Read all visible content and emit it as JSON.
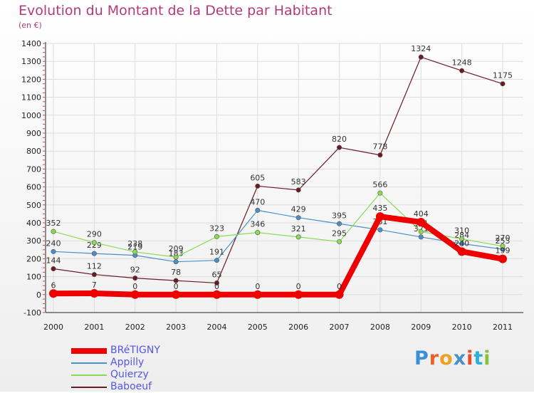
{
  "chart_data": {
    "type": "line",
    "title": "Evolution du Montant de la Dette par Habitant",
    "subtitle": "(en €)",
    "x": [
      "2000",
      "2001",
      "2002",
      "2003",
      "2004",
      "2005",
      "2006",
      "2007",
      "2008",
      "2009",
      "2010",
      "2011"
    ],
    "ylim": [
      -100,
      1400
    ],
    "yticks": [
      -100,
      0,
      100,
      200,
      300,
      400,
      500,
      600,
      700,
      800,
      900,
      1000,
      1100,
      1200,
      1300,
      1400
    ],
    "grid": true,
    "legend_position": "bottom-left",
    "series": [
      {
        "name": "Baboeuf",
        "color": "#6b1a24",
        "width": 1.2,
        "values": [
          144,
          112,
          92,
          78,
          65,
          605,
          583,
          820,
          778,
          1324,
          1248,
          1175
        ],
        "labels": [
          "144",
          "112",
          "92",
          "78",
          "65",
          "605",
          "583",
          "820",
          "778",
          "1324",
          "1248",
          "1175"
        ]
      },
      {
        "name": "Appilly",
        "color": "#4a90c8",
        "width": 1.2,
        "values": [
          240,
          229,
          219,
          183,
          191,
          470,
          429,
          395,
          361,
          321,
          284,
          253
        ],
        "labels": [
          "240",
          "229",
          "219",
          "183",
          "191",
          "470",
          "429",
          "395",
          "361",
          "321",
          "284",
          "253"
        ]
      },
      {
        "name": "Quierzy",
        "color": "#88dd55",
        "width": 1.2,
        "values": [
          352,
          290,
          238,
          209,
          323,
          346,
          321,
          295,
          566,
          351,
          310,
          270
        ],
        "labels": [
          "352",
          "290",
          "238",
          "209",
          "323",
          "346",
          "321",
          "295",
          "566",
          "351",
          "310",
          "270"
        ]
      },
      {
        "name": "BRéTIGNY",
        "color": "#ee0000",
        "width": 8,
        "values": [
          6,
          7,
          0,
          0,
          0,
          0,
          0,
          0,
          435,
          404,
          240,
          199
        ],
        "labels": [
          "6",
          "7",
          "0",
          "0",
          "0",
          "0",
          "0",
          "0",
          "435",
          "404",
          "240",
          "199"
        ]
      }
    ]
  },
  "legend": {
    "items": [
      {
        "name": "BRéTIGNY",
        "color": "#ee0000",
        "thickness": 8
      },
      {
        "name": "Appilly",
        "color": "#4a90c8",
        "thickness": 2
      },
      {
        "name": "Quierzy",
        "color": "#88dd55",
        "thickness": 2
      },
      {
        "name": "Baboeuf",
        "color": "#6b1a24",
        "thickness": 2
      }
    ]
  },
  "logo": {
    "text": "Proxiti",
    "letter_colors": [
      "#3b8fd6",
      "#e8622a",
      "#f0a020",
      "#4a90c8",
      "#e84a2a",
      "#2ab0d8",
      "#88c040"
    ]
  }
}
